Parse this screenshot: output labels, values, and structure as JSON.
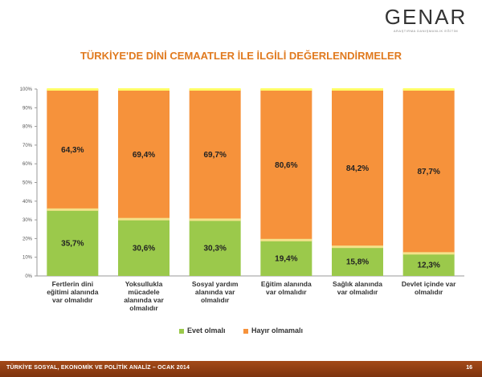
{
  "header": {
    "logo_text": "GENAR",
    "logo_tagline": "ARAŞTIRMA DANIŞMANLIK EĞİTİM",
    "title": "TÜRKİYE'DE DİNİ CEMAATLER İLE İLGİLİ DEĞERLENDİRMELER"
  },
  "colors": {
    "evet": "#9bc94b",
    "hayir": "#f6923b",
    "top": "#ffff66",
    "title": "#e07a1f",
    "footer": "#a44a18"
  },
  "chart_data": {
    "type": "bar",
    "stacked": true,
    "categories": [
      [
        "Fertlerin dini",
        "eğitimi alanında",
        "var olmalıdır"
      ],
      [
        "Yoksullukla",
        "mücadele",
        "alanında var",
        "olmalıdır"
      ],
      [
        "Sosyal yardım",
        "alanında var",
        "olmalıdır"
      ],
      [
        "Eğitim alanında",
        "var olmalıdır"
      ],
      [
        "Sağlık alanında",
        "var olmalıdır"
      ],
      [
        "Devlet içinde var",
        "olmalıdır"
      ]
    ],
    "series": [
      {
        "name": "Evet olmalı",
        "values": [
          35.7,
          30.6,
          30.3,
          19.4,
          15.8,
          12.3
        ],
        "labels": [
          "35,7%",
          "30,6%",
          "30,3%",
          "19,4%",
          "15,8%",
          "12,3%"
        ]
      },
      {
        "name": "Hayır olmamalı",
        "values": [
          64.3,
          69.4,
          69.7,
          80.6,
          84.2,
          87.7
        ],
        "labels": [
          "64,3%",
          "69,4%",
          "69,7%",
          "80,6%",
          "84,2%",
          "87,7%"
        ]
      }
    ],
    "y_ticks": [
      "0%",
      "10%",
      "20%",
      "30%",
      "40%",
      "50%",
      "60%",
      "70%",
      "80%",
      "90%",
      "100%"
    ],
    "ylim": [
      0,
      100
    ],
    "legend_position": "bottom"
  },
  "footer": {
    "text": "TÜRKİYE SOSYAL, EKONOMİK VE POLİTİK ANALİZ – OCAK 2014",
    "page": "16"
  }
}
